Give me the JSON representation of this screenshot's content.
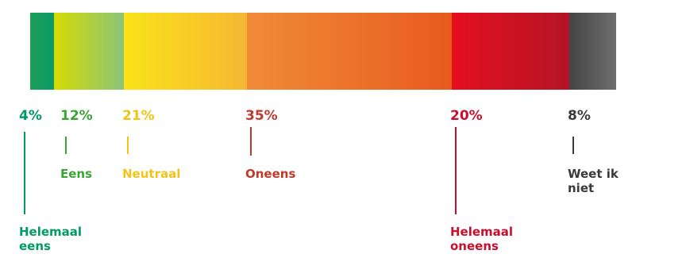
{
  "chart_data": {
    "type": "bar",
    "orientation": "horizontal-stacked",
    "unit": "%",
    "segments": [
      {
        "label": "Helemaal eens",
        "value": 4,
        "display": "4%",
        "color": "#009a62",
        "gradient": [
          "#1e9e5a",
          "#0c9a66"
        ]
      },
      {
        "label": "Eens",
        "value": 12,
        "display": "12%",
        "color": "#3aa535",
        "gradient": [
          "#d4dc00",
          "#8cc47a"
        ]
      },
      {
        "label": "Neutraal",
        "value": 21,
        "display": "21%",
        "color": "#f0c419",
        "gradient": [
          "#f9e21a",
          "#f6b833"
        ]
      },
      {
        "label": "Oneens",
        "value": 35,
        "display": "35%",
        "color": "#c0392b",
        "gradient": [
          "#f08c39",
          "#e85a1e"
        ]
      },
      {
        "label": "Helemaal oneens",
        "value": 20,
        "display": "20%",
        "color": "#c8102e",
        "gradient": [
          "#e4101e",
          "#b41426"
        ]
      },
      {
        "label": "Weet ik niet",
        "value": 8,
        "display": "8%",
        "color": "#3a3a3a",
        "gradient": [
          "#444444",
          "#6e6e6e"
        ]
      }
    ]
  }
}
